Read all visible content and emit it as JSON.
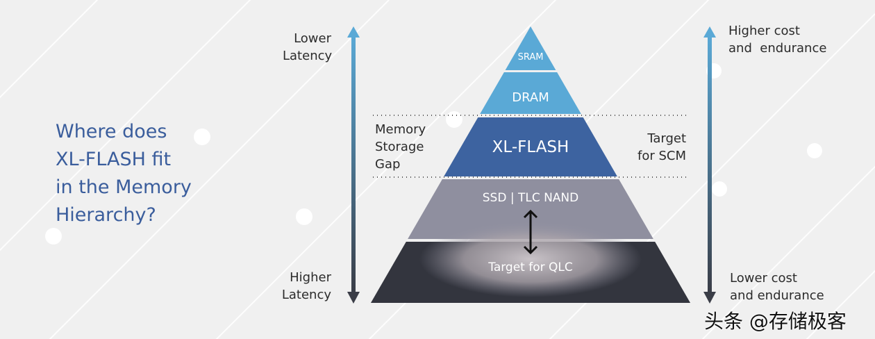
{
  "title": [
    "Where does",
    "XL-FLASH fit",
    "in the Memory",
    "Hierarchy?"
  ],
  "left_axis": {
    "top": [
      "Lower",
      "Latency"
    ],
    "bottom": [
      "Higher",
      "Latency"
    ]
  },
  "right_axis": {
    "top": [
      "Higher cost",
      "and  endurance"
    ],
    "bottom": [
      "Lower cost",
      "and endurance"
    ]
  },
  "gap_label": [
    "Memory",
    "Storage",
    "Gap"
  ],
  "scm_label": [
    "Target",
    "for SCM"
  ],
  "layers": [
    {
      "label": "SRAM",
      "color": "#5aa9d6"
    },
    {
      "label": "DRAM",
      "color": "#5aa9d6"
    },
    {
      "label": "XL-FLASH",
      "color": "#3d63a0"
    },
    {
      "label": "SSD | TLC NAND",
      "color": "#8f8f9f"
    },
    {
      "label": "Target for QLC",
      "color": "#33353e"
    }
  ],
  "colors": {
    "background": "#f0f0f0",
    "title": "#3a5d9c",
    "arrow_top": "#5aa9d6",
    "arrow_bottom": "#3a3d47"
  },
  "watermark": "头条 @存储极客"
}
